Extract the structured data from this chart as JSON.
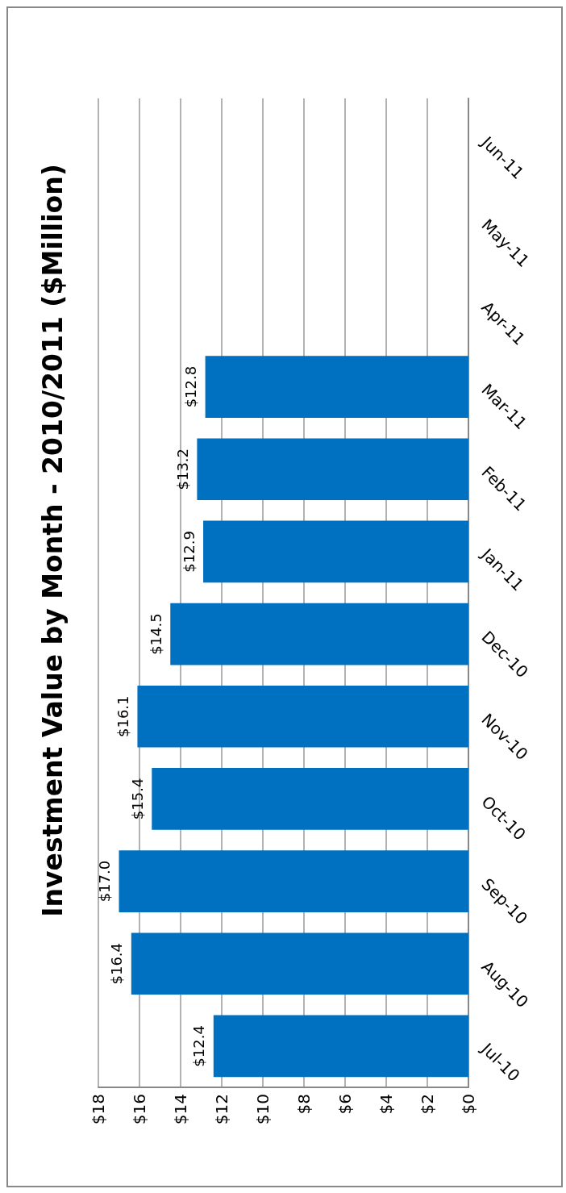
{
  "chart_data": {
    "type": "bar",
    "orientation": "horizontal",
    "title": "Investment Value by Month - 2010/2011 ($Million)",
    "categories": [
      "Jun-11",
      "May-11",
      "Apr-11",
      "Mar-11",
      "Feb-11",
      "Jan-11",
      "Dec-10",
      "Nov-10",
      "Oct-10",
      "Sep-10",
      "Aug-10",
      "Jul-10"
    ],
    "values": [
      null,
      null,
      null,
      12.8,
      13.2,
      12.9,
      14.5,
      16.1,
      15.4,
      17.0,
      16.4,
      12.4
    ],
    "value_labels": [
      null,
      null,
      null,
      "$12.8",
      "$13.2",
      "$12.9",
      "$14.5",
      "$16.1",
      "$15.4",
      "$17.0",
      "$16.4",
      "$12.4"
    ],
    "color": "#0070c0",
    "xlim": [
      18,
      0
    ],
    "xticks": [
      {
        "value": 18,
        "label": "$18"
      },
      {
        "value": 16,
        "label": "$16"
      },
      {
        "value": 14,
        "label": "$14"
      },
      {
        "value": 12,
        "label": "$12"
      },
      {
        "value": 10,
        "label": "$10"
      },
      {
        "value": 8,
        "label": "$8"
      },
      {
        "value": 6,
        "label": "$6"
      },
      {
        "value": 4,
        "label": "$4"
      },
      {
        "value": 2,
        "label": "$2"
      },
      {
        "value": 0,
        "label": "$0"
      }
    ],
    "grid": "x"
  }
}
